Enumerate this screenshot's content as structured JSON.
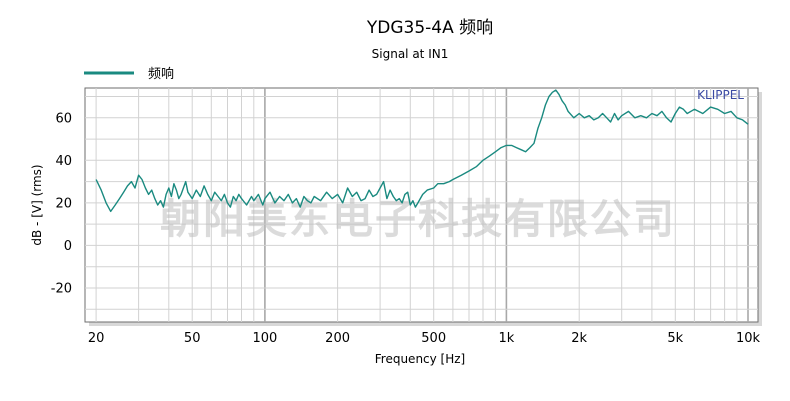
{
  "chart_data": {
    "type": "line",
    "title": "YDG35-4A 频响",
    "subtitle": "Signal at IN1",
    "xlabel": "Frequency [Hz]",
    "ylabel": "dB - [V]  (rms)",
    "x_scale": "log",
    "xlim": [
      18,
      11000
    ],
    "ylim": [
      -36,
      74
    ],
    "x_ticks": [
      {
        "value": 20,
        "label": "20"
      },
      {
        "value": 50,
        "label": "50"
      },
      {
        "value": 100,
        "label": "100"
      },
      {
        "value": 200,
        "label": "200"
      },
      {
        "value": 500,
        "label": "500"
      },
      {
        "value": 1000,
        "label": "1k"
      },
      {
        "value": 2000,
        "label": "2k"
      },
      {
        "value": 5000,
        "label": "5k"
      },
      {
        "value": 10000,
        "label": "10k"
      }
    ],
    "y_ticks": [
      {
        "value": 60,
        "label": "60"
      },
      {
        "value": 40,
        "label": "40"
      },
      {
        "value": 20,
        "label": "20"
      },
      {
        "value": 0,
        "label": "0"
      },
      {
        "value": -20,
        "label": "-20"
      }
    ],
    "grid": true,
    "legend_position": "top-left",
    "series": [
      {
        "name": "频响",
        "color": "#1a8a80",
        "points": [
          [
            20,
            31
          ],
          [
            21,
            26
          ],
          [
            22,
            20
          ],
          [
            23,
            16
          ],
          [
            24,
            19
          ],
          [
            25,
            22
          ],
          [
            26,
            25
          ],
          [
            27,
            28
          ],
          [
            28,
            30
          ],
          [
            29,
            27
          ],
          [
            30,
            33
          ],
          [
            31,
            31
          ],
          [
            32,
            27
          ],
          [
            33,
            24
          ],
          [
            34,
            26
          ],
          [
            35,
            22
          ],
          [
            36,
            19
          ],
          [
            37,
            21
          ],
          [
            38,
            18
          ],
          [
            39,
            24
          ],
          [
            40,
            27
          ],
          [
            41,
            23
          ],
          [
            42,
            29
          ],
          [
            43,
            26
          ],
          [
            44,
            22
          ],
          [
            45,
            24
          ],
          [
            46,
            27
          ],
          [
            47,
            30
          ],
          [
            48,
            25
          ],
          [
            50,
            22
          ],
          [
            52,
            26
          ],
          [
            54,
            23
          ],
          [
            56,
            28
          ],
          [
            58,
            24
          ],
          [
            60,
            21
          ],
          [
            62,
            25
          ],
          [
            64,
            23
          ],
          [
            66,
            21
          ],
          [
            68,
            24
          ],
          [
            70,
            20
          ],
          [
            72,
            18
          ],
          [
            74,
            23
          ],
          [
            76,
            21
          ],
          [
            78,
            24
          ],
          [
            80,
            22
          ],
          [
            84,
            19
          ],
          [
            88,
            23
          ],
          [
            90,
            21
          ],
          [
            94,
            24
          ],
          [
            98,
            19
          ],
          [
            100,
            22
          ],
          [
            105,
            25
          ],
          [
            110,
            20
          ],
          [
            115,
            23
          ],
          [
            120,
            21
          ],
          [
            125,
            24
          ],
          [
            130,
            20
          ],
          [
            135,
            22
          ],
          [
            140,
            18
          ],
          [
            145,
            23
          ],
          [
            150,
            21
          ],
          [
            155,
            20
          ],
          [
            160,
            23
          ],
          [
            170,
            21
          ],
          [
            180,
            25
          ],
          [
            190,
            22
          ],
          [
            200,
            24
          ],
          [
            210,
            20
          ],
          [
            220,
            27
          ],
          [
            230,
            23
          ],
          [
            240,
            25
          ],
          [
            250,
            21
          ],
          [
            260,
            22
          ],
          [
            270,
            26
          ],
          [
            280,
            23
          ],
          [
            290,
            24
          ],
          [
            300,
            27
          ],
          [
            310,
            30
          ],
          [
            320,
            22
          ],
          [
            330,
            26
          ],
          [
            340,
            23
          ],
          [
            350,
            21
          ],
          [
            360,
            22
          ],
          [
            370,
            20
          ],
          [
            380,
            24
          ],
          [
            390,
            25
          ],
          [
            400,
            19
          ],
          [
            410,
            21
          ],
          [
            420,
            18
          ],
          [
            430,
            20
          ],
          [
            450,
            24
          ],
          [
            470,
            26
          ],
          [
            500,
            27
          ],
          [
            520,
            29
          ],
          [
            550,
            29
          ],
          [
            580,
            30
          ],
          [
            600,
            31
          ],
          [
            650,
            33
          ],
          [
            700,
            35
          ],
          [
            750,
            37
          ],
          [
            800,
            40
          ],
          [
            850,
            42
          ],
          [
            900,
            44
          ],
          [
            950,
            46
          ],
          [
            1000,
            47
          ],
          [
            1050,
            47
          ],
          [
            1100,
            46
          ],
          [
            1150,
            45
          ],
          [
            1200,
            44
          ],
          [
            1250,
            46
          ],
          [
            1300,
            48
          ],
          [
            1350,
            55
          ],
          [
            1400,
            60
          ],
          [
            1450,
            66
          ],
          [
            1500,
            70
          ],
          [
            1550,
            72
          ],
          [
            1600,
            73
          ],
          [
            1650,
            71
          ],
          [
            1700,
            68
          ],
          [
            1750,
            66
          ],
          [
            1800,
            63
          ],
          [
            1900,
            60
          ],
          [
            2000,
            62
          ],
          [
            2100,
            60
          ],
          [
            2200,
            61
          ],
          [
            2300,
            59
          ],
          [
            2400,
            60
          ],
          [
            2500,
            62
          ],
          [
            2600,
            60
          ],
          [
            2700,
            58
          ],
          [
            2800,
            62
          ],
          [
            2900,
            59
          ],
          [
            3000,
            61
          ],
          [
            3200,
            63
          ],
          [
            3400,
            60
          ],
          [
            3600,
            61
          ],
          [
            3800,
            60
          ],
          [
            4000,
            62
          ],
          [
            4200,
            61
          ],
          [
            4400,
            63
          ],
          [
            4600,
            60
          ],
          [
            4800,
            58
          ],
          [
            5000,
            62
          ],
          [
            5200,
            65
          ],
          [
            5400,
            64
          ],
          [
            5600,
            62
          ],
          [
            6000,
            64
          ],
          [
            6500,
            62
          ],
          [
            7000,
            65
          ],
          [
            7500,
            64
          ],
          [
            8000,
            62
          ],
          [
            8500,
            63
          ],
          [
            9000,
            60
          ],
          [
            9500,
            59
          ],
          [
            10000,
            57
          ]
        ]
      }
    ],
    "brand_label": "KLIPPEL",
    "watermark": "朝阳美东电子科技有限公司"
  }
}
